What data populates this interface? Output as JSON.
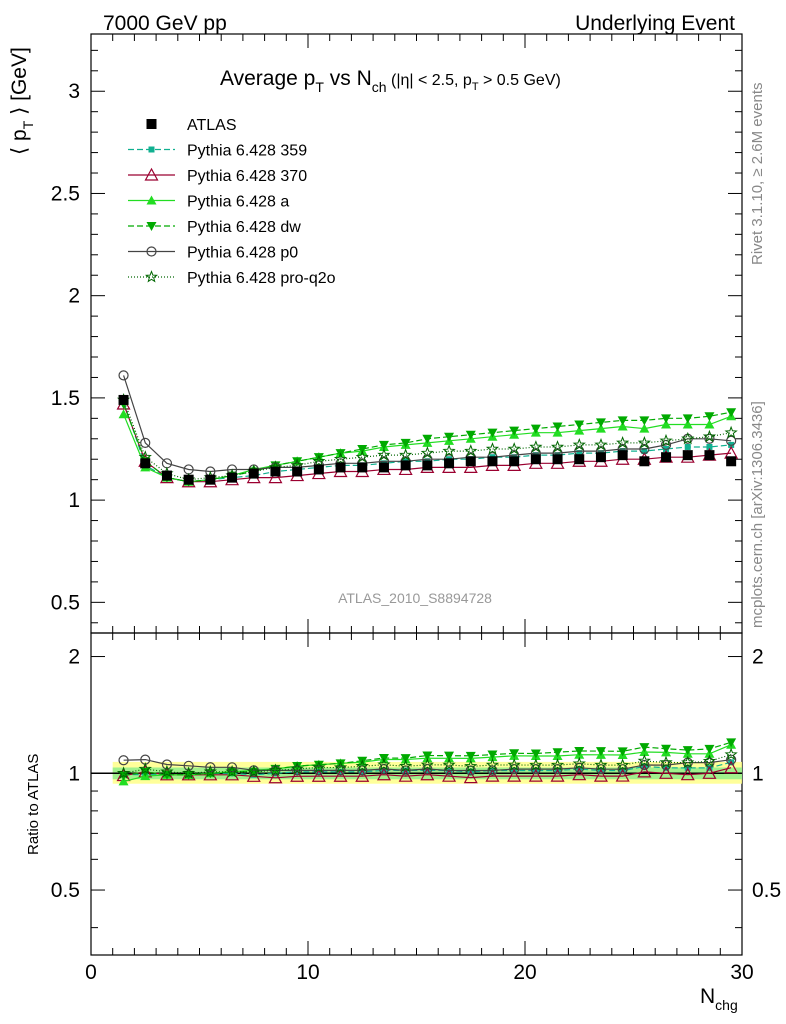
{
  "header": {
    "left": "7000 GeV pp",
    "right": "Underlying Event"
  },
  "side_labels": {
    "rivet": "Rivet 3.1.10, ≥ 2.6M events",
    "mcplots": "mcplots.cern.ch [arXiv:1306.3436]"
  },
  "title": {
    "main_a": "Average p",
    "main_a_sub": "T",
    "main_b": " vs N",
    "main_b_sub": "ch",
    "cut_a": " (|η| < 2.5, p",
    "cut_sub": "T",
    "cut_b": " > 0.5 GeV)"
  },
  "analysis_tag": "ATLAS_2010_S8894728",
  "y_label_top": {
    "pre": "⟨ p",
    "sub": "T",
    "post": " ⟩ [GeV]"
  },
  "y_label_bottom": "Ratio to ATLAS",
  "x_label": {
    "main": "N",
    "sub": "chg"
  },
  "main_ticks": [
    "0.5",
    "1",
    "1.5",
    "2",
    "2.5",
    "3"
  ],
  "ratio_ticks": [
    "0.5",
    "1",
    "2"
  ],
  "x_ticks": [
    "0",
    "10",
    "20",
    "30"
  ],
  "chart_data": {
    "type": "scatter",
    "xlabel": "N_chg",
    "ylabel": "<p_T> [GeV]",
    "xlim": [
      0,
      30
    ],
    "ylim": [
      0.35,
      3.28
    ],
    "ratio_ylim": [
      0.34,
      2.3
    ],
    "ratio_log": true,
    "x": [
      1.5,
      2.5,
      3.5,
      4.5,
      5.5,
      6.5,
      7.5,
      8.5,
      9.5,
      10.5,
      11.5,
      12.5,
      13.5,
      14.5,
      15.5,
      16.5,
      17.5,
      18.5,
      19.5,
      20.5,
      21.5,
      22.5,
      23.5,
      24.5,
      25.5,
      26.5,
      27.5,
      28.5,
      29.5
    ],
    "series": [
      {
        "name": "ATLAS",
        "color": "#000000",
        "marker": "square-filled",
        "dash": "",
        "legend_label": "ATLAS",
        "values": [
          1.49,
          1.18,
          1.12,
          1.1,
          1.1,
          1.11,
          1.13,
          1.14,
          1.14,
          1.15,
          1.16,
          1.16,
          1.16,
          1.17,
          1.17,
          1.18,
          1.19,
          1.19,
          1.19,
          1.2,
          1.2,
          1.2,
          1.21,
          1.22,
          1.19,
          1.21,
          1.22,
          1.22,
          1.19
        ]
      },
      {
        "name": "Pythia 6.428 359",
        "color": "#10b090",
        "marker": "square-small",
        "dash": "6,3",
        "legend_label": "Pythia 6.428 359",
        "values": [
          1.48,
          1.17,
          1.11,
          1.09,
          1.1,
          1.11,
          1.12,
          1.14,
          1.15,
          1.16,
          1.17,
          1.17,
          1.18,
          1.19,
          1.19,
          1.2,
          1.2,
          1.21,
          1.21,
          1.22,
          1.22,
          1.23,
          1.23,
          1.24,
          1.24,
          1.25,
          1.26,
          1.26,
          1.27
        ]
      },
      {
        "name": "Pythia 6.428 370",
        "color": "#9b0030",
        "marker": "triangle-open",
        "dash": "",
        "legend_label": "Pythia 6.428 370",
        "values": [
          1.47,
          1.19,
          1.11,
          1.09,
          1.09,
          1.1,
          1.11,
          1.11,
          1.12,
          1.13,
          1.14,
          1.14,
          1.15,
          1.15,
          1.16,
          1.16,
          1.16,
          1.17,
          1.17,
          1.18,
          1.18,
          1.19,
          1.19,
          1.2,
          1.2,
          1.21,
          1.21,
          1.22,
          1.23
        ]
      },
      {
        "name": "Pythia 6.428 a",
        "color": "#22dd22",
        "marker": "triangle-filled",
        "dash": "",
        "legend_label": "Pythia 6.428 a",
        "values": [
          1.42,
          1.16,
          1.11,
          1.09,
          1.1,
          1.12,
          1.15,
          1.17,
          1.19,
          1.21,
          1.23,
          1.24,
          1.26,
          1.27,
          1.28,
          1.29,
          1.3,
          1.31,
          1.32,
          1.33,
          1.33,
          1.34,
          1.35,
          1.36,
          1.35,
          1.37,
          1.37,
          1.37,
          1.41
        ]
      },
      {
        "name": "Pythia 6.428 dw",
        "color": "#00aa00",
        "marker": "triangle-down-filled",
        "dash": "6,3",
        "legend_label": "Pythia 6.428 dw",
        "values": [
          1.47,
          1.19,
          1.11,
          1.09,
          1.1,
          1.12,
          1.14,
          1.17,
          1.19,
          1.21,
          1.23,
          1.25,
          1.27,
          1.28,
          1.3,
          1.31,
          1.32,
          1.33,
          1.34,
          1.35,
          1.36,
          1.37,
          1.38,
          1.39,
          1.39,
          1.4,
          1.4,
          1.41,
          1.43
        ]
      },
      {
        "name": "Pythia 6.428 p0",
        "color": "#444444",
        "marker": "circle-open",
        "dash": "",
        "legend_label": "Pythia 6.428 p0",
        "values": [
          1.61,
          1.28,
          1.18,
          1.15,
          1.14,
          1.15,
          1.15,
          1.16,
          1.16,
          1.17,
          1.18,
          1.18,
          1.19,
          1.19,
          1.2,
          1.2,
          1.21,
          1.21,
          1.22,
          1.23,
          1.23,
          1.24,
          1.24,
          1.25,
          1.25,
          1.27,
          1.3,
          1.3,
          1.29
        ]
      },
      {
        "name": "Pythia 6.428 pro-q2o",
        "color": "#006600",
        "marker": "star-open",
        "dash": "1,2",
        "legend_label": "Pythia 6.428 pro-q2o",
        "values": [
          1.49,
          1.21,
          1.13,
          1.1,
          1.11,
          1.12,
          1.14,
          1.16,
          1.17,
          1.19,
          1.2,
          1.21,
          1.22,
          1.22,
          1.23,
          1.24,
          1.24,
          1.25,
          1.25,
          1.26,
          1.26,
          1.27,
          1.27,
          1.28,
          1.28,
          1.29,
          1.3,
          1.31,
          1.33
        ]
      }
    ]
  }
}
